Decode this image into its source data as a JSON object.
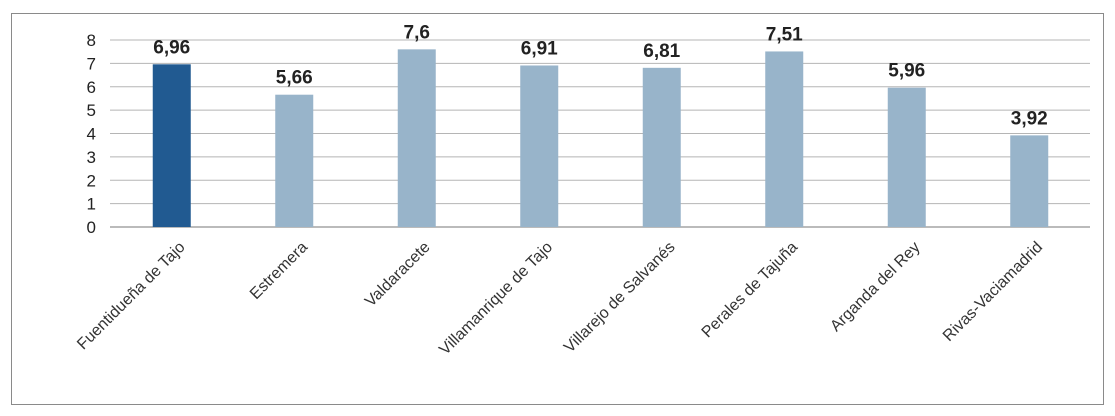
{
  "chart_data": {
    "type": "bar",
    "categories": [
      "Fuentidueña de Tajo",
      "Estremera",
      "Valdaracete",
      "Villamanrique de Tajo",
      "Villarejo de Salvanés",
      "Perales de Tajuña",
      "Arganda del Rey",
      "Rivas-Vaciamadrid"
    ],
    "values": [
      6.96,
      5.66,
      7.6,
      6.91,
      6.81,
      7.51,
      5.96,
      3.92
    ],
    "value_labels": [
      "6,96",
      "5,66",
      "7,6",
      "6,91",
      "6,81",
      "7,51",
      "5,96",
      "3,92"
    ],
    "yticks": [
      "0",
      "1",
      "2",
      "3",
      "4",
      "5",
      "6",
      "7",
      "8"
    ],
    "ylim": [
      0,
      8
    ],
    "grid": true,
    "legend": "none",
    "colors": {
      "highlight": "#215a91",
      "bar": "#98b4ca"
    },
    "highlight_index": 0
  }
}
